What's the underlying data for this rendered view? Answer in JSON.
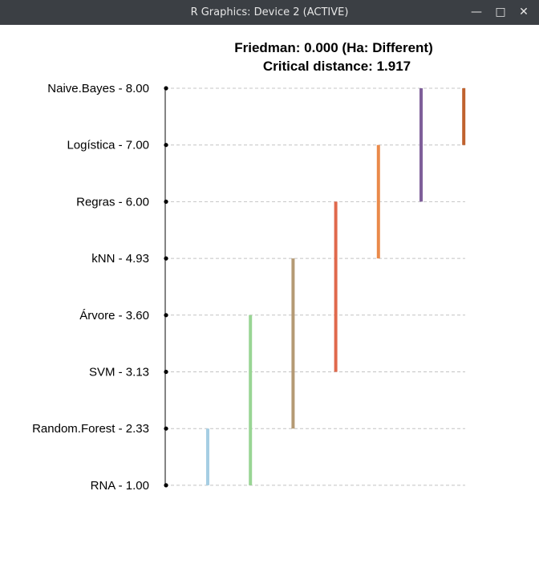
{
  "window": {
    "title": "R Graphics: Device 2 (ACTIVE)",
    "buttons": {
      "minimize": "—",
      "maximize": "□",
      "close": "✕"
    }
  },
  "chart_data": {
    "type": "critical-difference",
    "title": "Friedman: 0.000 (Ha: Different)",
    "subtitle": "Critical distance: 1.917",
    "categories": [
      "Naive.Bayes",
      "Logística",
      "Regras",
      "kNN",
      "Árvore",
      "SVM",
      "Random.Forest",
      "RNA"
    ],
    "values": [
      8.0,
      7.0,
      6.0,
      4.93,
      3.6,
      3.13,
      2.33,
      1.0
    ],
    "labels": [
      "Naive.Bayes - 8.00",
      "Logística - 7.00",
      "Regras - 6.00",
      "kNN - 4.93",
      "Árvore - 3.60",
      "SVM - 3.13",
      "Random.Forest - 2.33",
      "RNA - 1.00"
    ],
    "ylim": [
      1,
      8
    ],
    "groups": [
      {
        "from": 1.0,
        "to": 2.33,
        "color": "#a6cee3"
      },
      {
        "from": 1.0,
        "to": 3.6,
        "color": "#99d594"
      },
      {
        "from": 2.33,
        "to": 4.93,
        "color": "#b59a74"
      },
      {
        "from": 3.13,
        "to": 6.0,
        "color": "#e0694c"
      },
      {
        "from": 4.93,
        "to": 7.0,
        "color": "#ea8a4a"
      },
      {
        "from": 6.0,
        "to": 8.0,
        "color": "#7f5f9a"
      },
      {
        "from": 7.0,
        "to": 8.0,
        "color": "#c0622e"
      }
    ],
    "grid": true
  }
}
